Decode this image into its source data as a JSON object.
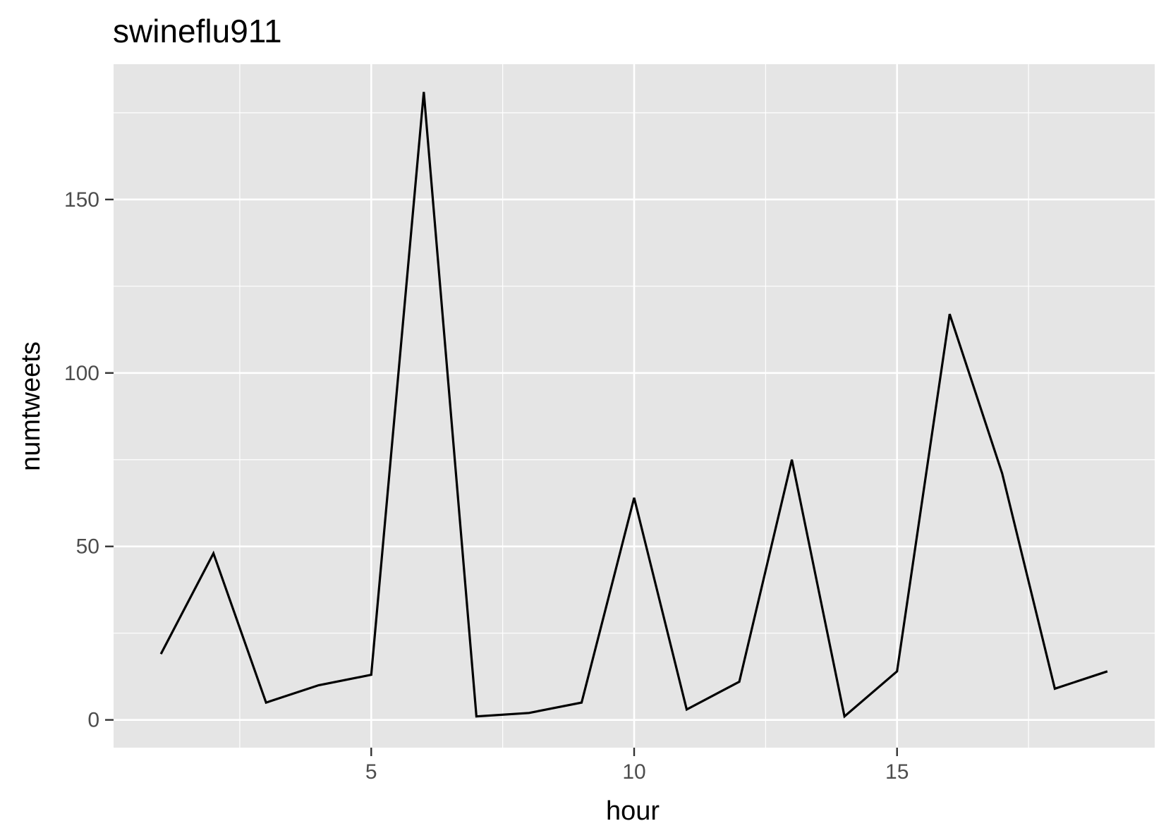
{
  "chart_data": {
    "type": "line",
    "title": "swineflu911",
    "xlabel": "hour",
    "ylabel": "numtweets",
    "xlim": [
      0.1,
      19.9
    ],
    "ylim": [
      -8,
      189
    ],
    "x_ticks": [
      5,
      10,
      15
    ],
    "x_minor_ticks": [
      2.5,
      7.5,
      12.5,
      17.5
    ],
    "y_ticks": [
      0,
      50,
      100,
      150
    ],
    "y_minor_ticks": [
      25,
      75,
      125,
      175
    ],
    "grid": true,
    "legend": "none",
    "colors": {
      "panel_background": "#e5e5e5",
      "grid_line": "#ffffff",
      "series_line": "#000000",
      "tick_label": "#4d4d4d",
      "axis_tick": "#333333"
    },
    "series": [
      {
        "x": [
          1,
          2,
          3,
          4,
          5,
          6,
          7,
          8,
          9,
          10,
          11,
          12,
          13,
          14,
          15,
          16,
          17,
          18,
          19
        ],
        "y": [
          19,
          48,
          5,
          10,
          13,
          181,
          1,
          2,
          5,
          64,
          3,
          11,
          75,
          1,
          14,
          117,
          71,
          9,
          14
        ]
      }
    ]
  }
}
